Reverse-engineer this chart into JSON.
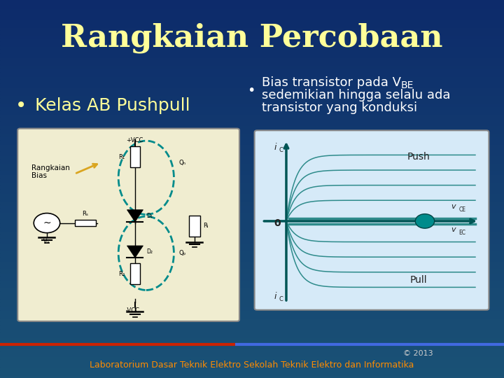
{
  "title": "Rangkaian Percobaan",
  "title_color": "#FFFF99",
  "title_fontsize": 32,
  "bg_color_top": "#1a5276",
  "bg_color_bottom": "#0d2b6b",
  "bullet1": "Kelas AB Pushpull",
  "bullet1_color": "#FFFF99",
  "bullet1_fontsize": 18,
  "bullet2_line1": "Bias transistor pada V",
  "bullet2_sub": "BE",
  "bullet2_line2": "sedemikian hingga selalu ada",
  "bullet2_line3": "transistor yang konduksi",
  "bullet2_color": "#FFFFFF",
  "bullet2_fontsize": 13,
  "circuit_box_color": "#F0EDD0",
  "push_label": "Push",
  "pull_label": "Pull",
  "vce_label": "vCE",
  "vec_label": "vEC",
  "ic_label": "iC",
  "zero_label": "0",
  "footer_copyright": "© 2013",
  "footer_lab": "Laboratorium Dasar Teknik Elektro Sekolah Teknik Elektro dan Informatika",
  "footer_color": "#FF8C00",
  "footer_copyright_color": "#CCCCCC",
  "footer_fontsize": 9,
  "separator_color1": "#CC2200",
  "separator_color2": "#4169E1",
  "teal_color": "#2E8B8B",
  "graph_box_facecolor": "#D6EAF8",
  "op_dot_color": "#008B8B"
}
